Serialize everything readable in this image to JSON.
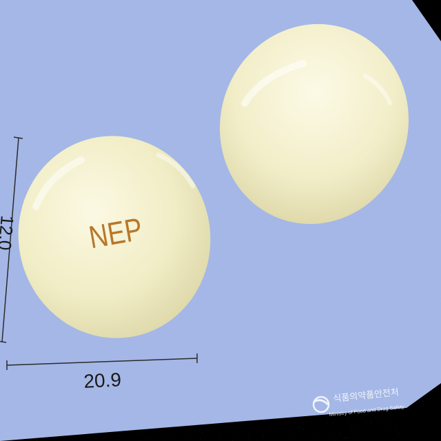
{
  "photo": {
    "background_color": "#a4b7e6",
    "tablet_color": "#f2efc8",
    "imprint_color": "#b8772a"
  },
  "tablet_imprint": "NEP",
  "measurements": {
    "width": "20.9",
    "height": "12.0"
  },
  "watermark": {
    "org_korean": "식품의약품안전처",
    "org_english": "Ministry of Food and Drug Safety"
  }
}
